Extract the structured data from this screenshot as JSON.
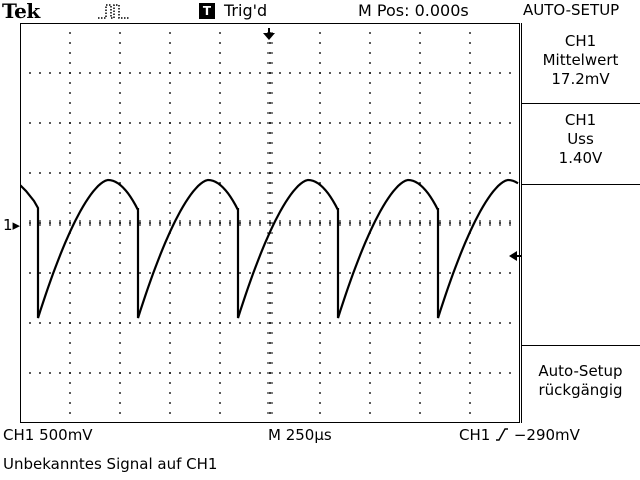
{
  "header": {
    "brand": "Tek",
    "trigger_icon_letter": "T",
    "trigger_status": "Trig'd",
    "position": "M Pos: 0.000s",
    "menu_title": "AUTO-SETUP"
  },
  "measurements": [
    {
      "channel": "CH1",
      "name": "Mittelwert",
      "value": "17.2mV"
    },
    {
      "channel": "CH1",
      "name": "Uss",
      "value": "1.40V"
    }
  ],
  "side_menu": {
    "undo_line1": "Auto-Setup",
    "undo_line2": "rückgängig"
  },
  "status": {
    "ch1_scale": "CH1  500mV",
    "timebase": "M 250μs",
    "trigger_channel": "CH1",
    "trigger_level": "−290mV",
    "message": "Unbekanntes Signal auf CH1"
  },
  "markers": {
    "ch1_ground": "1"
  },
  "colors": {
    "background": "#ffffff",
    "trace": "#000000",
    "grid": "#000000"
  }
}
